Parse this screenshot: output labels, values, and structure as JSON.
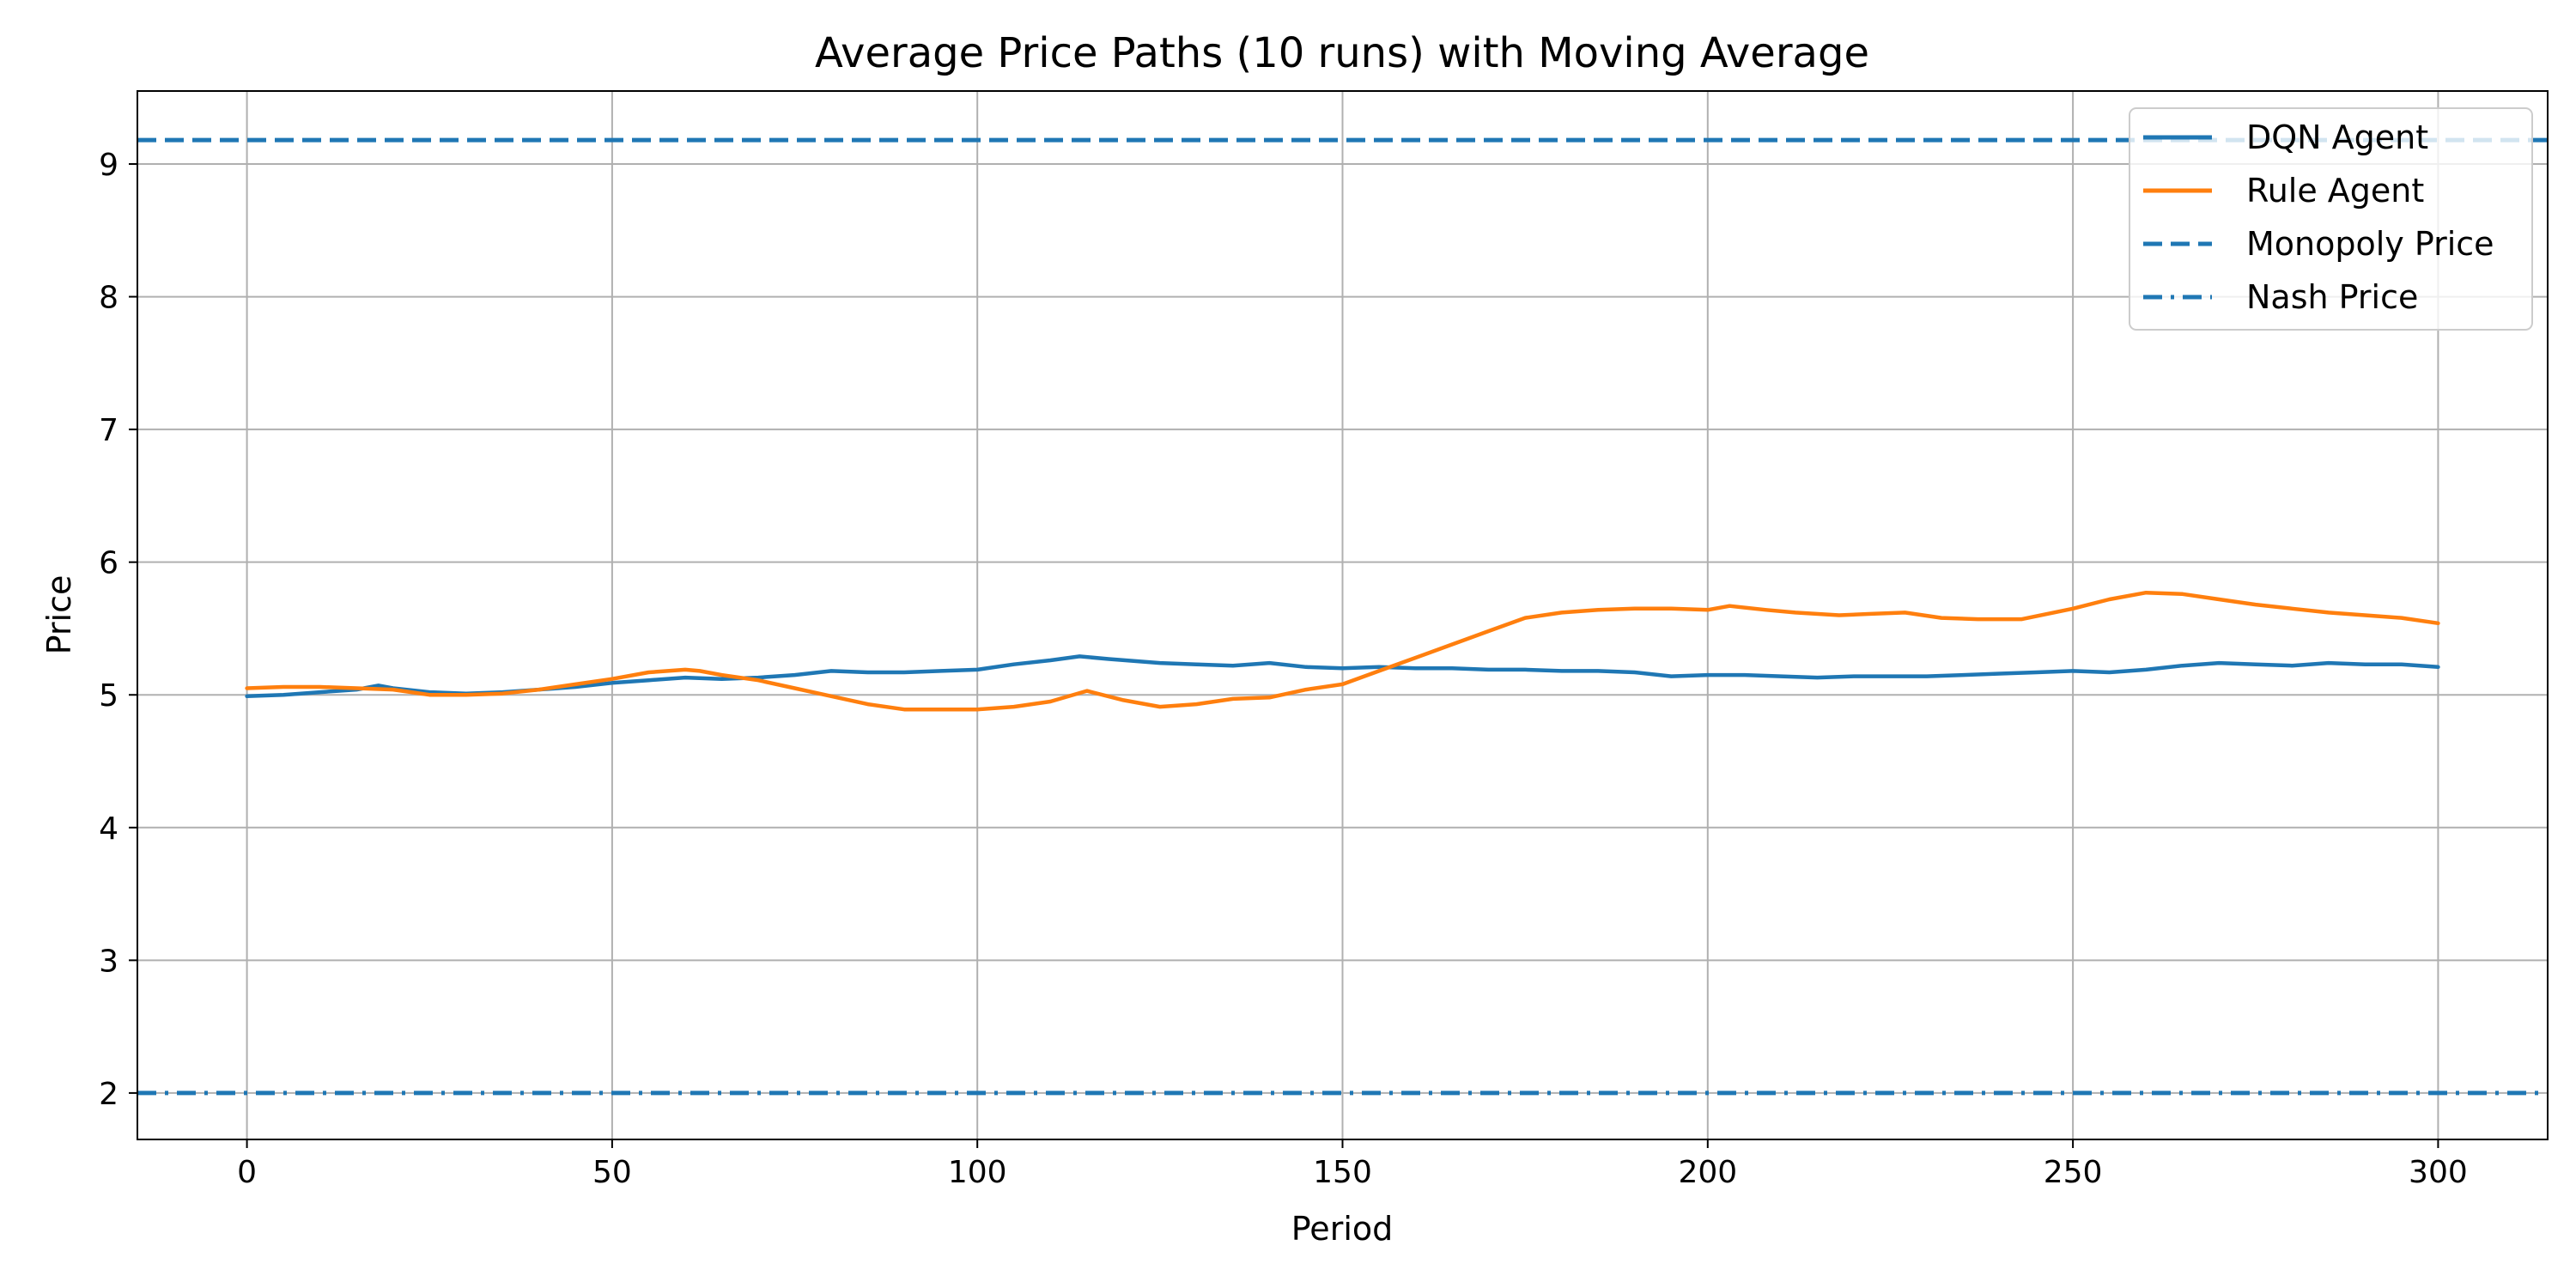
{
  "chart_data": {
    "type": "line",
    "title": "Average Price Paths (10 runs) with Moving Average",
    "xlabel": "Period",
    "ylabel": "Price",
    "xlim": [
      -15,
      315
    ],
    "ylim": [
      1.65,
      9.55
    ],
    "xticks": [
      0,
      50,
      100,
      150,
      200,
      250,
      300
    ],
    "yticks": [
      2,
      3,
      4,
      5,
      6,
      7,
      8,
      9
    ],
    "grid": true,
    "legend_position": "top-right",
    "colors": {
      "blue": "#1f77b4",
      "orange": "#ff7f0e"
    },
    "series": [
      {
        "name": "DQN Agent",
        "style": "solid",
        "color": "#1f77b4",
        "x": [
          0,
          5,
          10,
          15,
          18,
          20,
          25,
          30,
          35,
          40,
          45,
          50,
          55,
          60,
          65,
          70,
          75,
          80,
          85,
          90,
          95,
          100,
          105,
          110,
          114,
          118,
          125,
          130,
          135,
          140,
          145,
          150,
          155,
          160,
          165,
          170,
          175,
          180,
          185,
          190,
          195,
          200,
          205,
          210,
          215,
          220,
          225,
          230,
          235,
          240,
          245,
          250,
          255,
          260,
          265,
          270,
          275,
          280,
          285,
          290,
          295,
          300
        ],
        "values": [
          4.99,
          5.0,
          5.02,
          5.04,
          5.07,
          5.05,
          5.02,
          5.01,
          5.02,
          5.04,
          5.06,
          5.09,
          5.11,
          5.13,
          5.12,
          5.13,
          5.15,
          5.18,
          5.17,
          5.17,
          5.18,
          5.19,
          5.23,
          5.26,
          5.29,
          5.27,
          5.24,
          5.23,
          5.22,
          5.24,
          5.21,
          5.2,
          5.21,
          5.2,
          5.2,
          5.19,
          5.19,
          5.18,
          5.18,
          5.17,
          5.14,
          5.15,
          5.15,
          5.14,
          5.13,
          5.14,
          5.14,
          5.14,
          5.15,
          5.16,
          5.17,
          5.18,
          5.17,
          5.19,
          5.22,
          5.24,
          5.23,
          5.22,
          5.24,
          5.23,
          5.23,
          5.21
        ]
      },
      {
        "name": "Rule Agent",
        "style": "solid",
        "color": "#ff7f0e",
        "x": [
          0,
          5,
          10,
          15,
          20,
          25,
          30,
          35,
          40,
          45,
          50,
          55,
          60,
          62,
          65,
          70,
          75,
          80,
          85,
          90,
          95,
          100,
          105,
          110,
          115,
          120,
          125,
          130,
          135,
          140,
          145,
          150,
          155,
          160,
          165,
          170,
          175,
          180,
          185,
          190,
          195,
          200,
          203,
          208,
          212,
          218,
          222,
          227,
          232,
          237,
          243,
          250,
          255,
          260,
          265,
          270,
          275,
          280,
          285,
          290,
          295,
          300
        ],
        "values": [
          5.05,
          5.06,
          5.06,
          5.05,
          5.04,
          5.0,
          5.0,
          5.01,
          5.04,
          5.08,
          5.12,
          5.17,
          5.19,
          5.18,
          5.15,
          5.11,
          5.05,
          4.99,
          4.93,
          4.89,
          4.89,
          4.89,
          4.91,
          4.95,
          5.03,
          4.96,
          4.91,
          4.93,
          4.97,
          4.98,
          5.04,
          5.08,
          5.18,
          5.28,
          5.38,
          5.48,
          5.58,
          5.62,
          5.64,
          5.65,
          5.65,
          5.64,
          5.67,
          5.64,
          5.62,
          5.6,
          5.61,
          5.62,
          5.58,
          5.57,
          5.57,
          5.65,
          5.72,
          5.77,
          5.76,
          5.72,
          5.68,
          5.65,
          5.62,
          5.6,
          5.58,
          5.54
        ]
      },
      {
        "name": "Monopoly Price",
        "style": "dashed",
        "color": "#1f77b4",
        "value": 9.18
      },
      {
        "name": "Nash Price",
        "style": "dashdot",
        "color": "#1f77b4",
        "value": 2.0
      }
    ]
  }
}
